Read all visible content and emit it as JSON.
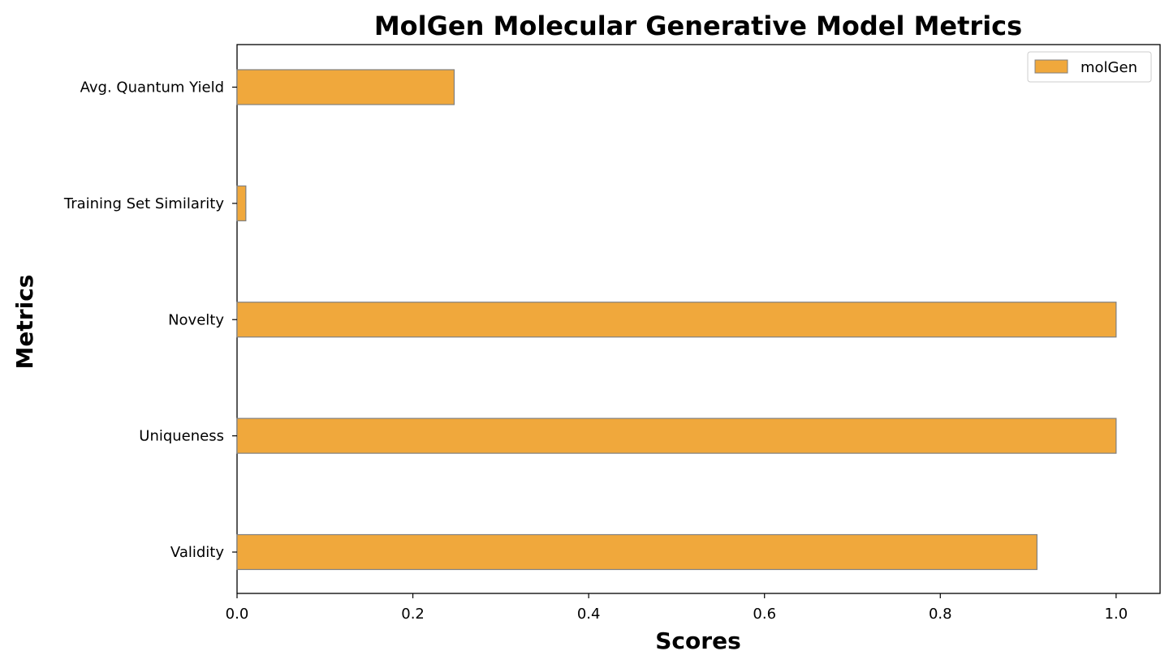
{
  "chart_data": {
    "type": "bar",
    "orientation": "horizontal",
    "title": "MolGen Molecular Generative Model Metrics",
    "xlabel": "Scores",
    "ylabel": "Metrics",
    "categories": [
      "Validity",
      "Uniqueness",
      "Novelty",
      "Training Set Similarity",
      "Avg. Quantum Yield"
    ],
    "series": [
      {
        "name": "molGen",
        "values": [
          0.91,
          1.0,
          1.0,
          0.01,
          0.247
        ],
        "color": "#f0a83c",
        "edgecolor": "#808080"
      }
    ],
    "xlim": [
      0,
      1.05
    ],
    "xticks": [
      "0.0",
      "0.2",
      "0.4",
      "0.6",
      "0.8",
      "1.0"
    ],
    "xtick_values": [
      0,
      0.2,
      0.4,
      0.6,
      0.8,
      1.0
    ],
    "grid": false,
    "legend_position": "top-right"
  }
}
